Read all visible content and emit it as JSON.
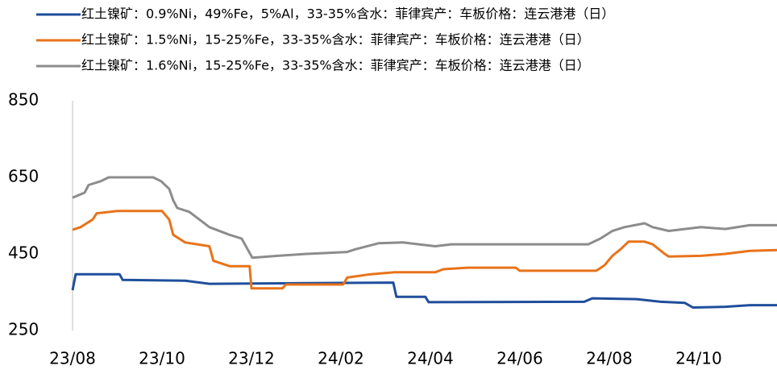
{
  "chart_data": {
    "type": "line",
    "xlim": [
      0,
      15.75
    ],
    "xticks": [
      {
        "value": 0,
        "label": "23/08"
      },
      {
        "value": 2,
        "label": "23/10"
      },
      {
        "value": 4,
        "label": "23/12"
      },
      {
        "value": 6,
        "label": "24/02"
      },
      {
        "value": 8,
        "label": "24/04"
      },
      {
        "value": 10,
        "label": "24/06"
      },
      {
        "value": 12,
        "label": "24/08"
      },
      {
        "value": 14,
        "label": "24/10"
      }
    ],
    "ylim": [
      250,
      850
    ],
    "yticks": [
      250,
      450,
      650,
      850
    ],
    "grid": false,
    "series": [
      {
        "name": "红土镍矿：0.9%Ni，49%Fe，5%Al，33-35%含水：菲律宾产：车板价格：连云港港（日）",
        "color": "#1f4e9c",
        "x": [
          0,
          0.07,
          1.05,
          1.12,
          2.52,
          3.06,
          7.17,
          7.24,
          7.89,
          7.96,
          11.44,
          11.62,
          12.61,
          13.15,
          13.69,
          13.87,
          14.59,
          15.14,
          15.75
        ],
        "values": [
          355,
          397,
          397,
          382,
          380,
          372,
          375,
          338,
          338,
          324,
          325,
          334,
          332,
          325,
          322,
          310,
          312,
          316,
          316
        ]
      },
      {
        "name": "红土镍矿：1.5%Ni，15-25%Fe，33-35%含水：菲律宾产：车板价格：连云港港（日）",
        "color": "#e8731a",
        "x": [
          0,
          0.18,
          0.45,
          0.54,
          1.0,
          2.0,
          2.16,
          2.25,
          2.52,
          3.06,
          3.15,
          3.51,
          3.96,
          4.0,
          4.69,
          4.77,
          6.05,
          6.14,
          6.67,
          7.2,
          8.11,
          8.29,
          8.83,
          9.91,
          10.0,
          11.71,
          11.89,
          12.07,
          12.25,
          12.43,
          12.79,
          12.97,
          13.24,
          13.33,
          14.05,
          14.59,
          15.14,
          15.75
        ],
        "values": [
          513,
          520,
          540,
          556,
          562,
          562,
          540,
          500,
          480,
          470,
          432,
          418,
          418,
          360,
          360,
          370,
          370,
          388,
          397,
          402,
          402,
          410,
          414,
          414,
          406,
          406,
          420,
          445,
          462,
          482,
          482,
          475,
          450,
          443,
          445,
          450,
          458,
          460
        ]
      },
      {
        "name": "红土镍矿：1.6%Ni，15-25%Fe，33-35%含水：菲律宾产：车板价格：连云港港（日）",
        "color": "#8c8c8c",
        "x": [
          0,
          0.27,
          0.36,
          0.63,
          0.81,
          1.8,
          1.98,
          2.16,
          2.25,
          2.34,
          2.61,
          3.06,
          3.51,
          3.78,
          4.02,
          4.59,
          5.23,
          6.14,
          6.32,
          6.85,
          7.39,
          8.11,
          8.47,
          11.53,
          11.8,
          12.07,
          12.34,
          12.79,
          12.97,
          13.33,
          13.69,
          14.05,
          14.59,
          15.14,
          15.75
        ],
        "values": [
          597,
          610,
          630,
          640,
          650,
          650,
          640,
          620,
          590,
          570,
          560,
          520,
          500,
          490,
          440,
          445,
          450,
          455,
          462,
          478,
          480,
          470,
          475,
          475,
          490,
          510,
          520,
          530,
          520,
          510,
          515,
          520,
          515,
          525,
          525
        ]
      }
    ]
  }
}
